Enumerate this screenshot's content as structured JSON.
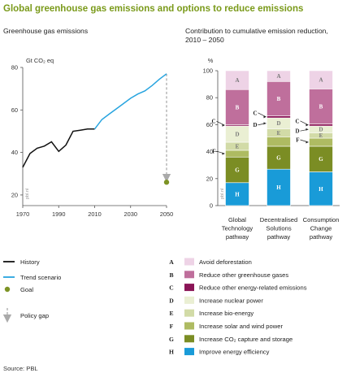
{
  "title": "Global greenhouse gas emissions and options to reduce emissions",
  "left_subtitle": "Greenhouse gas emissions",
  "right_subtitle_line1": "Contribution to cumulative emission reduction,",
  "right_subtitle_line2": "2010 – 2050",
  "source": "Source: PBL",
  "watermark": "pbl.nl",
  "legend_left": [
    {
      "label": "History",
      "color": "#111111",
      "icon": "line-icon"
    },
    {
      "label": "Trend scenario",
      "color": "#27a4df",
      "icon": "line-icon"
    },
    {
      "label": "Goal",
      "color": "#7d9325",
      "icon": "dot-icon"
    },
    {
      "label": "Policy gap",
      "color": "#aaaaaa",
      "icon": "dashed-arrow-icon"
    }
  ],
  "legend_right": [
    {
      "letter": "A",
      "label": "Avoid deforestation",
      "color": "#eed3e6"
    },
    {
      "letter": "B",
      "label": "Reduce other greenhouse gases",
      "color": "#bf6f9c"
    },
    {
      "letter": "C",
      "label": "Reduce other energy-related emissions",
      "color": "#8a1456"
    },
    {
      "letter": "D",
      "label": "Increase nuclear power",
      "color": "#eaefd3"
    },
    {
      "letter": "E",
      "label": "Increase bio-energy",
      "color": "#d2dba7"
    },
    {
      "letter": "F",
      "label": "Increase solar and wind power",
      "color": "#aebb62"
    },
    {
      "letter": "G",
      "label": "Increase CO₂ capture and storage",
      "color": "#7b8d24"
    },
    {
      "letter": "H",
      "label": "Improve energy efficiency",
      "color": "#199bd8"
    }
  ],
  "chart_data": [
    {
      "type": "line",
      "ylabel": "Gt CO₂ eq",
      "xlim": [
        1970,
        2050
      ],
      "ylim": [
        15,
        80
      ],
      "yticks": [
        20,
        40,
        60,
        80
      ],
      "xticks": [
        1970,
        1990,
        2010,
        2030,
        2050
      ],
      "series": [
        {
          "name": "History",
          "color": "#111111",
          "x": [
            1970,
            1974,
            1978,
            1982,
            1986,
            1990,
            1994,
            1998,
            2002,
            2006,
            2010
          ],
          "y": [
            33,
            39.5,
            42,
            43,
            45,
            40.5,
            43.5,
            50,
            50.5,
            51,
            51
          ]
        },
        {
          "name": "Trend scenario",
          "color": "#27a4df",
          "x": [
            2010,
            2014,
            2018,
            2022,
            2026,
            2030,
            2034,
            2038,
            2042,
            2046,
            2050
          ],
          "y": [
            51,
            55.5,
            58,
            60.5,
            63,
            65.5,
            67.5,
            69,
            71.5,
            74.5,
            77
          ]
        },
        {
          "name": "Goal",
          "color": "#7d9325",
          "x": [
            2050
          ],
          "y": [
            26
          ]
        }
      ],
      "annotations": [
        {
          "label": "Policy gap",
          "x": 2050,
          "from": 77,
          "to": 28
        }
      ]
    },
    {
      "type": "bar",
      "stacked": true,
      "ylabel": "%",
      "ylim": [
        0,
        100
      ],
      "yticks": [
        0,
        20,
        40,
        60,
        80,
        100
      ],
      "categories": [
        "Global Technology pathway",
        "Decentralised Solutions pathway",
        "Consumption Change pathway"
      ],
      "category_lines": [
        [
          "Global",
          "Technology",
          "pathway"
        ],
        [
          "Decentralised",
          "Solutions",
          "pathway"
        ],
        [
          "Consumption",
          "Change",
          "pathway"
        ]
      ],
      "series": [
        {
          "name": "H",
          "color": "#199bd8",
          "values": [
            17,
            27,
            25
          ]
        },
        {
          "name": "G",
          "color": "#7b8d24",
          "values": [
            19,
            17,
            19
          ]
        },
        {
          "name": "F",
          "color": "#aebb62",
          "values": [
            5,
            7,
            6
          ]
        },
        {
          "name": "E",
          "color": "#d2dba7",
          "values": [
            6,
            6,
            4
          ]
        },
        {
          "name": "D",
          "color": "#eaefd3",
          "values": [
            12,
            8,
            5
          ]
        },
        {
          "name": "C",
          "color": "#8a1456",
          "values": [
            1,
            1.5,
            1.5
          ]
        },
        {
          "name": "B",
          "color": "#bf6f9c",
          "values": [
            26,
            25.5,
            26
          ]
        },
        {
          "name": "A",
          "color": "#eed3e6",
          "values": [
            14,
            8,
            13.5
          ]
        }
      ],
      "inside_labels": [
        "A",
        "B",
        "D",
        "E",
        "G",
        "H"
      ],
      "callouts": [
        [
          "C",
          "F"
        ],
        [
          "C",
          "D"
        ],
        [
          "C",
          "D",
          "F"
        ]
      ]
    }
  ]
}
